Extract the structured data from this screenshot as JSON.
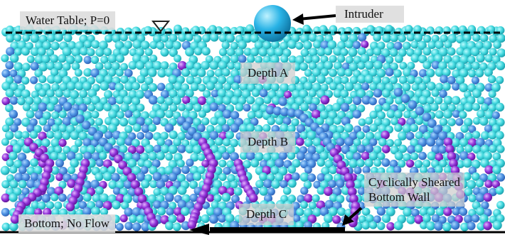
{
  "labels": {
    "water_table": "Water Table; P=0",
    "intruder": "Intruder",
    "depth_a": "Depth A",
    "depth_b": "Depth B",
    "depth_c": "Depth C",
    "sheared_wall_line1": "Cyclically Sheared",
    "sheared_wall_line2": "Bottom Wall",
    "bottom": "Bottom; No Flow"
  },
  "colors": {
    "background": "#ffffff",
    "grain_light": "#3fd6dc",
    "grain_mid": "#4a8fe0",
    "grain_dark": "#8f2fd6",
    "intruder": "#29b3e6",
    "water_line": "#000000",
    "label_box": "#dcdcdc"
  }
}
